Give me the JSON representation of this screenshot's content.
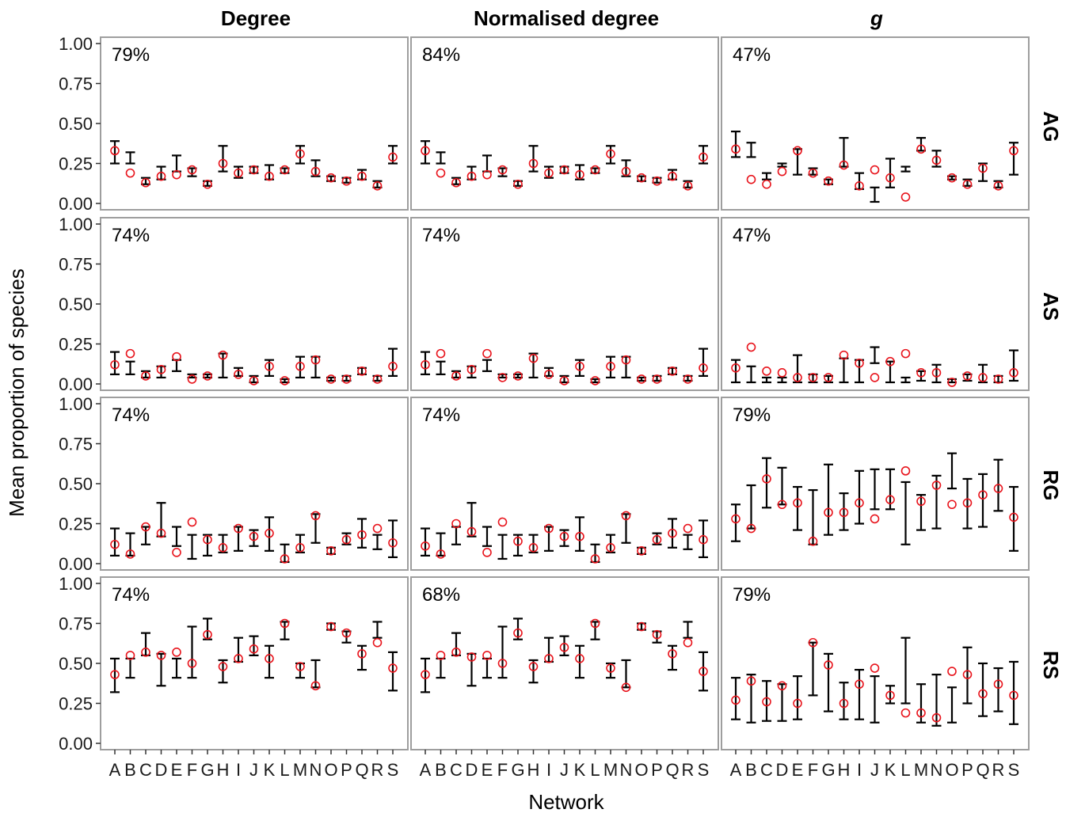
{
  "figure": {
    "x_title": "Network",
    "y_title": "Mean proportion of species",
    "col_titles": [
      "Degree",
      "Normalised degree",
      "g"
    ],
    "row_labels": [
      "AG",
      "AS",
      "RG",
      "RS"
    ],
    "y_tick_labels": [
      "1.00",
      "0.75",
      "0.50",
      "0.25",
      "0.00"
    ],
    "x_tick_labels": [
      "A",
      "B",
      "C",
      "D",
      "E",
      "F",
      "G",
      "H",
      "I",
      "J",
      "K",
      "L",
      "M",
      "N",
      "O",
      "P",
      "Q",
      "R",
      "S"
    ],
    "observed_color": "#e8141c",
    "errorbar_color": "#000000"
  },
  "chart_data": {
    "type": "scatter",
    "ylim": [
      0,
      1
    ],
    "y_ticks": [
      0,
      0.25,
      0.5,
      0.75,
      1.0
    ],
    "x": [
      "A",
      "B",
      "C",
      "D",
      "E",
      "F",
      "G",
      "H",
      "I",
      "J",
      "K",
      "L",
      "M",
      "N",
      "O",
      "P",
      "Q",
      "R",
      "S"
    ],
    "panels": [
      {
        "row": "AG",
        "col": "Degree",
        "percent_label": "79%",
        "obs": [
          0.33,
          0.19,
          0.13,
          0.17,
          0.18,
          0.21,
          0.12,
          0.25,
          0.19,
          0.21,
          0.17,
          0.21,
          0.31,
          0.2,
          0.16,
          0.14,
          0.17,
          0.11,
          0.29
        ],
        "lo": [
          0.25,
          0.25,
          0.12,
          0.15,
          0.2,
          0.17,
          0.11,
          0.2,
          0.16,
          0.19,
          0.15,
          0.19,
          0.25,
          0.17,
          0.14,
          0.13,
          0.15,
          0.1,
          0.25
        ],
        "hi": [
          0.39,
          0.32,
          0.16,
          0.23,
          0.3,
          0.22,
          0.14,
          0.36,
          0.23,
          0.23,
          0.24,
          0.22,
          0.36,
          0.27,
          0.17,
          0.16,
          0.21,
          0.14,
          0.36
        ]
      },
      {
        "row": "AG",
        "col": "Normalised degree",
        "percent_label": "84%",
        "obs": [
          0.33,
          0.19,
          0.13,
          0.17,
          0.18,
          0.21,
          0.12,
          0.25,
          0.19,
          0.21,
          0.18,
          0.21,
          0.31,
          0.2,
          0.16,
          0.14,
          0.17,
          0.11,
          0.29
        ],
        "lo": [
          0.25,
          0.25,
          0.12,
          0.15,
          0.2,
          0.17,
          0.11,
          0.2,
          0.16,
          0.19,
          0.15,
          0.19,
          0.25,
          0.17,
          0.14,
          0.13,
          0.15,
          0.1,
          0.25
        ],
        "hi": [
          0.39,
          0.32,
          0.16,
          0.23,
          0.3,
          0.22,
          0.14,
          0.36,
          0.23,
          0.23,
          0.24,
          0.22,
          0.36,
          0.27,
          0.17,
          0.16,
          0.21,
          0.14,
          0.36
        ]
      },
      {
        "row": "AG",
        "col": "g",
        "percent_label": "47%",
        "obs": [
          0.34,
          0.15,
          0.12,
          0.2,
          0.33,
          0.19,
          0.14,
          0.24,
          0.11,
          0.21,
          0.16,
          0.04,
          0.34,
          0.27,
          0.16,
          0.12,
          0.22,
          0.11,
          0.33
        ],
        "lo": [
          0.29,
          0.29,
          0.15,
          0.23,
          0.18,
          0.18,
          0.12,
          0.23,
          0.09,
          0.01,
          0.1,
          0.2,
          0.33,
          0.23,
          0.15,
          0.11,
          0.14,
          0.1,
          0.18
        ],
        "hi": [
          0.45,
          0.38,
          0.19,
          0.25,
          0.34,
          0.22,
          0.15,
          0.41,
          0.19,
          0.1,
          0.28,
          0.23,
          0.41,
          0.33,
          0.17,
          0.15,
          0.25,
          0.14,
          0.38
        ]
      },
      {
        "row": "AS",
        "col": "Degree",
        "percent_label": "74%",
        "obs": [
          0.12,
          0.19,
          0.05,
          0.09,
          0.17,
          0.03,
          0.05,
          0.18,
          0.06,
          0.02,
          0.11,
          0.02,
          0.11,
          0.15,
          0.03,
          0.03,
          0.08,
          0.03,
          0.11
        ],
        "lo": [
          0.06,
          0.06,
          0.04,
          0.04,
          0.08,
          0.04,
          0.04,
          0.04,
          0.05,
          0.01,
          0.05,
          0.01,
          0.04,
          0.04,
          0.02,
          0.02,
          0.06,
          0.02,
          0.05
        ],
        "hi": [
          0.2,
          0.14,
          0.08,
          0.11,
          0.15,
          0.06,
          0.06,
          0.19,
          0.1,
          0.05,
          0.15,
          0.03,
          0.17,
          0.17,
          0.04,
          0.05,
          0.1,
          0.05,
          0.22
        ]
      },
      {
        "row": "AS",
        "col": "Normalised degree",
        "percent_label": "74%",
        "obs": [
          0.12,
          0.19,
          0.05,
          0.09,
          0.19,
          0.04,
          0.05,
          0.16,
          0.06,
          0.02,
          0.11,
          0.02,
          0.11,
          0.15,
          0.03,
          0.03,
          0.08,
          0.03,
          0.1
        ],
        "lo": [
          0.06,
          0.06,
          0.04,
          0.04,
          0.08,
          0.04,
          0.04,
          0.04,
          0.05,
          0.01,
          0.05,
          0.01,
          0.04,
          0.04,
          0.02,
          0.02,
          0.06,
          0.02,
          0.05
        ],
        "hi": [
          0.2,
          0.14,
          0.08,
          0.11,
          0.15,
          0.06,
          0.06,
          0.19,
          0.1,
          0.05,
          0.15,
          0.03,
          0.17,
          0.17,
          0.04,
          0.05,
          0.1,
          0.05,
          0.22
        ]
      },
      {
        "row": "AS",
        "col": "g",
        "percent_label": "47%",
        "obs": [
          0.1,
          0.23,
          0.08,
          0.07,
          0.04,
          0.04,
          0.04,
          0.18,
          0.13,
          0.04,
          0.14,
          0.19,
          0.07,
          0.07,
          0.01,
          0.05,
          0.04,
          0.03,
          0.07
        ],
        "lo": [
          0.01,
          0.01,
          0.01,
          0.01,
          0.01,
          0.01,
          0.01,
          0.01,
          0.01,
          0.13,
          0.01,
          0.01,
          0.02,
          0.01,
          0.01,
          0.02,
          0.01,
          0.01,
          0.02
        ],
        "hi": [
          0.15,
          0.11,
          0.04,
          0.04,
          0.18,
          0.06,
          0.05,
          0.16,
          0.15,
          0.23,
          0.14,
          0.04,
          0.08,
          0.12,
          0.03,
          0.06,
          0.12,
          0.05,
          0.21
        ]
      },
      {
        "row": "RG",
        "col": "Degree",
        "percent_label": "74%",
        "obs": [
          0.12,
          0.06,
          0.23,
          0.19,
          0.07,
          0.26,
          0.15,
          0.1,
          0.22,
          0.17,
          0.19,
          0.03,
          0.1,
          0.3,
          0.08,
          0.15,
          0.18,
          0.22,
          0.13
        ],
        "lo": [
          0.05,
          0.05,
          0.12,
          0.17,
          0.11,
          0.03,
          0.05,
          0.07,
          0.08,
          0.11,
          0.08,
          0.01,
          0.07,
          0.13,
          0.06,
          0.12,
          0.1,
          0.09,
          0.04
        ],
        "hi": [
          0.22,
          0.19,
          0.23,
          0.38,
          0.23,
          0.18,
          0.18,
          0.18,
          0.23,
          0.21,
          0.29,
          0.12,
          0.18,
          0.31,
          0.1,
          0.19,
          0.28,
          0.18,
          0.27
        ]
      },
      {
        "row": "RG",
        "col": "Normalised degree",
        "percent_label": "74%",
        "obs": [
          0.11,
          0.06,
          0.25,
          0.2,
          0.07,
          0.26,
          0.14,
          0.1,
          0.22,
          0.17,
          0.17,
          0.03,
          0.1,
          0.3,
          0.08,
          0.15,
          0.19,
          0.22,
          0.15
        ],
        "lo": [
          0.05,
          0.05,
          0.12,
          0.17,
          0.11,
          0.03,
          0.05,
          0.07,
          0.08,
          0.11,
          0.08,
          0.01,
          0.07,
          0.13,
          0.06,
          0.12,
          0.1,
          0.09,
          0.04
        ],
        "hi": [
          0.22,
          0.19,
          0.23,
          0.38,
          0.23,
          0.18,
          0.18,
          0.18,
          0.23,
          0.21,
          0.29,
          0.12,
          0.18,
          0.31,
          0.1,
          0.19,
          0.28,
          0.18,
          0.27
        ]
      },
      {
        "row": "RG",
        "col": "g",
        "percent_label": "79%",
        "obs": [
          0.28,
          0.22,
          0.53,
          0.37,
          0.38,
          0.14,
          0.32,
          0.32,
          0.38,
          0.28,
          0.4,
          0.58,
          0.39,
          0.49,
          0.37,
          0.38,
          0.43,
          0.47,
          0.29
        ],
        "lo": [
          0.14,
          0.22,
          0.35,
          0.37,
          0.21,
          0.12,
          0.18,
          0.21,
          0.25,
          0.34,
          0.34,
          0.12,
          0.21,
          0.22,
          0.47,
          0.22,
          0.23,
          0.33,
          0.08
        ],
        "hi": [
          0.37,
          0.49,
          0.66,
          0.6,
          0.48,
          0.46,
          0.62,
          0.44,
          0.58,
          0.59,
          0.59,
          0.51,
          0.43,
          0.55,
          0.69,
          0.53,
          0.56,
          0.65,
          0.48
        ]
      },
      {
        "row": "RS",
        "col": "Degree",
        "percent_label": "74%",
        "obs": [
          0.43,
          0.55,
          0.57,
          0.55,
          0.57,
          0.5,
          0.68,
          0.48,
          0.53,
          0.59,
          0.53,
          0.75,
          0.48,
          0.36,
          0.73,
          0.69,
          0.56,
          0.63,
          0.47
        ],
        "lo": [
          0.32,
          0.41,
          0.55,
          0.36,
          0.41,
          0.41,
          0.65,
          0.38,
          0.51,
          0.55,
          0.41,
          0.65,
          0.41,
          0.35,
          0.71,
          0.63,
          0.46,
          0.66,
          0.33
        ],
        "hi": [
          0.53,
          0.53,
          0.69,
          0.56,
          0.53,
          0.73,
          0.78,
          0.52,
          0.66,
          0.67,
          0.61,
          0.76,
          0.5,
          0.52,
          0.75,
          0.7,
          0.61,
          0.76,
          0.57
        ]
      },
      {
        "row": "RS",
        "col": "Normalised degree",
        "percent_label": "68%",
        "obs": [
          0.43,
          0.55,
          0.57,
          0.54,
          0.55,
          0.5,
          0.69,
          0.48,
          0.53,
          0.6,
          0.53,
          0.75,
          0.47,
          0.35,
          0.73,
          0.68,
          0.56,
          0.63,
          0.45
        ],
        "lo": [
          0.32,
          0.41,
          0.55,
          0.36,
          0.41,
          0.41,
          0.65,
          0.38,
          0.51,
          0.55,
          0.41,
          0.65,
          0.41,
          0.35,
          0.71,
          0.63,
          0.46,
          0.66,
          0.33
        ],
        "hi": [
          0.53,
          0.53,
          0.69,
          0.56,
          0.53,
          0.73,
          0.78,
          0.52,
          0.66,
          0.67,
          0.61,
          0.76,
          0.5,
          0.52,
          0.75,
          0.7,
          0.61,
          0.76,
          0.57
        ]
      },
      {
        "row": "RS",
        "col": "g",
        "percent_label": "79%",
        "obs": [
          0.27,
          0.39,
          0.26,
          0.36,
          0.25,
          0.63,
          0.49,
          0.25,
          0.37,
          0.47,
          0.3,
          0.19,
          0.19,
          0.16,
          0.45,
          0.43,
          0.31,
          0.37,
          0.3
        ],
        "lo": [
          0.15,
          0.13,
          0.14,
          0.14,
          0.15,
          0.3,
          0.2,
          0.15,
          0.15,
          0.13,
          0.25,
          0.25,
          0.13,
          0.11,
          0.13,
          0.25,
          0.17,
          0.2,
          0.12
        ],
        "hi": [
          0.41,
          0.43,
          0.39,
          0.37,
          0.42,
          0.63,
          0.56,
          0.38,
          0.46,
          0.42,
          0.36,
          0.66,
          0.37,
          0.43,
          0.35,
          0.6,
          0.5,
          0.47,
          0.51
        ]
      }
    ]
  }
}
